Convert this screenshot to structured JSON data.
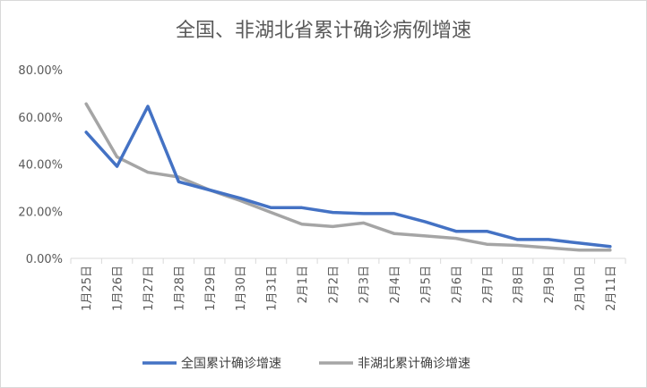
{
  "chart_data": {
    "type": "line",
    "title": "全国、非湖北省累计确诊病例增速",
    "xlabel": "",
    "ylabel": "",
    "categories": [
      "1月25日",
      "1月26日",
      "1月27日",
      "1月28日",
      "1月29日",
      "1月30日",
      "1月31日",
      "2月1日",
      "2月2日",
      "2月3日",
      "2月4日",
      "2月5日",
      "2月6日",
      "2月7日",
      "2月8日",
      "2月9日",
      "2月10日",
      "2月11日"
    ],
    "y_ticks": [
      "0.00%",
      "20.00%",
      "40.00%",
      "60.00%",
      "80.00%"
    ],
    "ylim": [
      0,
      80
    ],
    "grid": false,
    "legend_position": "bottom",
    "series": [
      {
        "name": "全国累计确诊增速",
        "color": "#4472C4",
        "values": [
          53.5,
          39.0,
          64.5,
          32.5,
          29.0,
          25.5,
          21.5,
          21.5,
          19.5,
          19.0,
          19.0,
          15.5,
          11.5,
          11.5,
          8.0,
          8.0,
          6.5,
          5.0
        ]
      },
      {
        "name": "非湖北累计确诊增速",
        "color": "#A5A5A5",
        "values": [
          65.5,
          43.0,
          36.5,
          34.5,
          29.0,
          24.5,
          19.5,
          14.5,
          13.5,
          15.0,
          10.5,
          9.5,
          8.5,
          6.0,
          5.5,
          4.5,
          3.5,
          3.5
        ]
      }
    ]
  }
}
